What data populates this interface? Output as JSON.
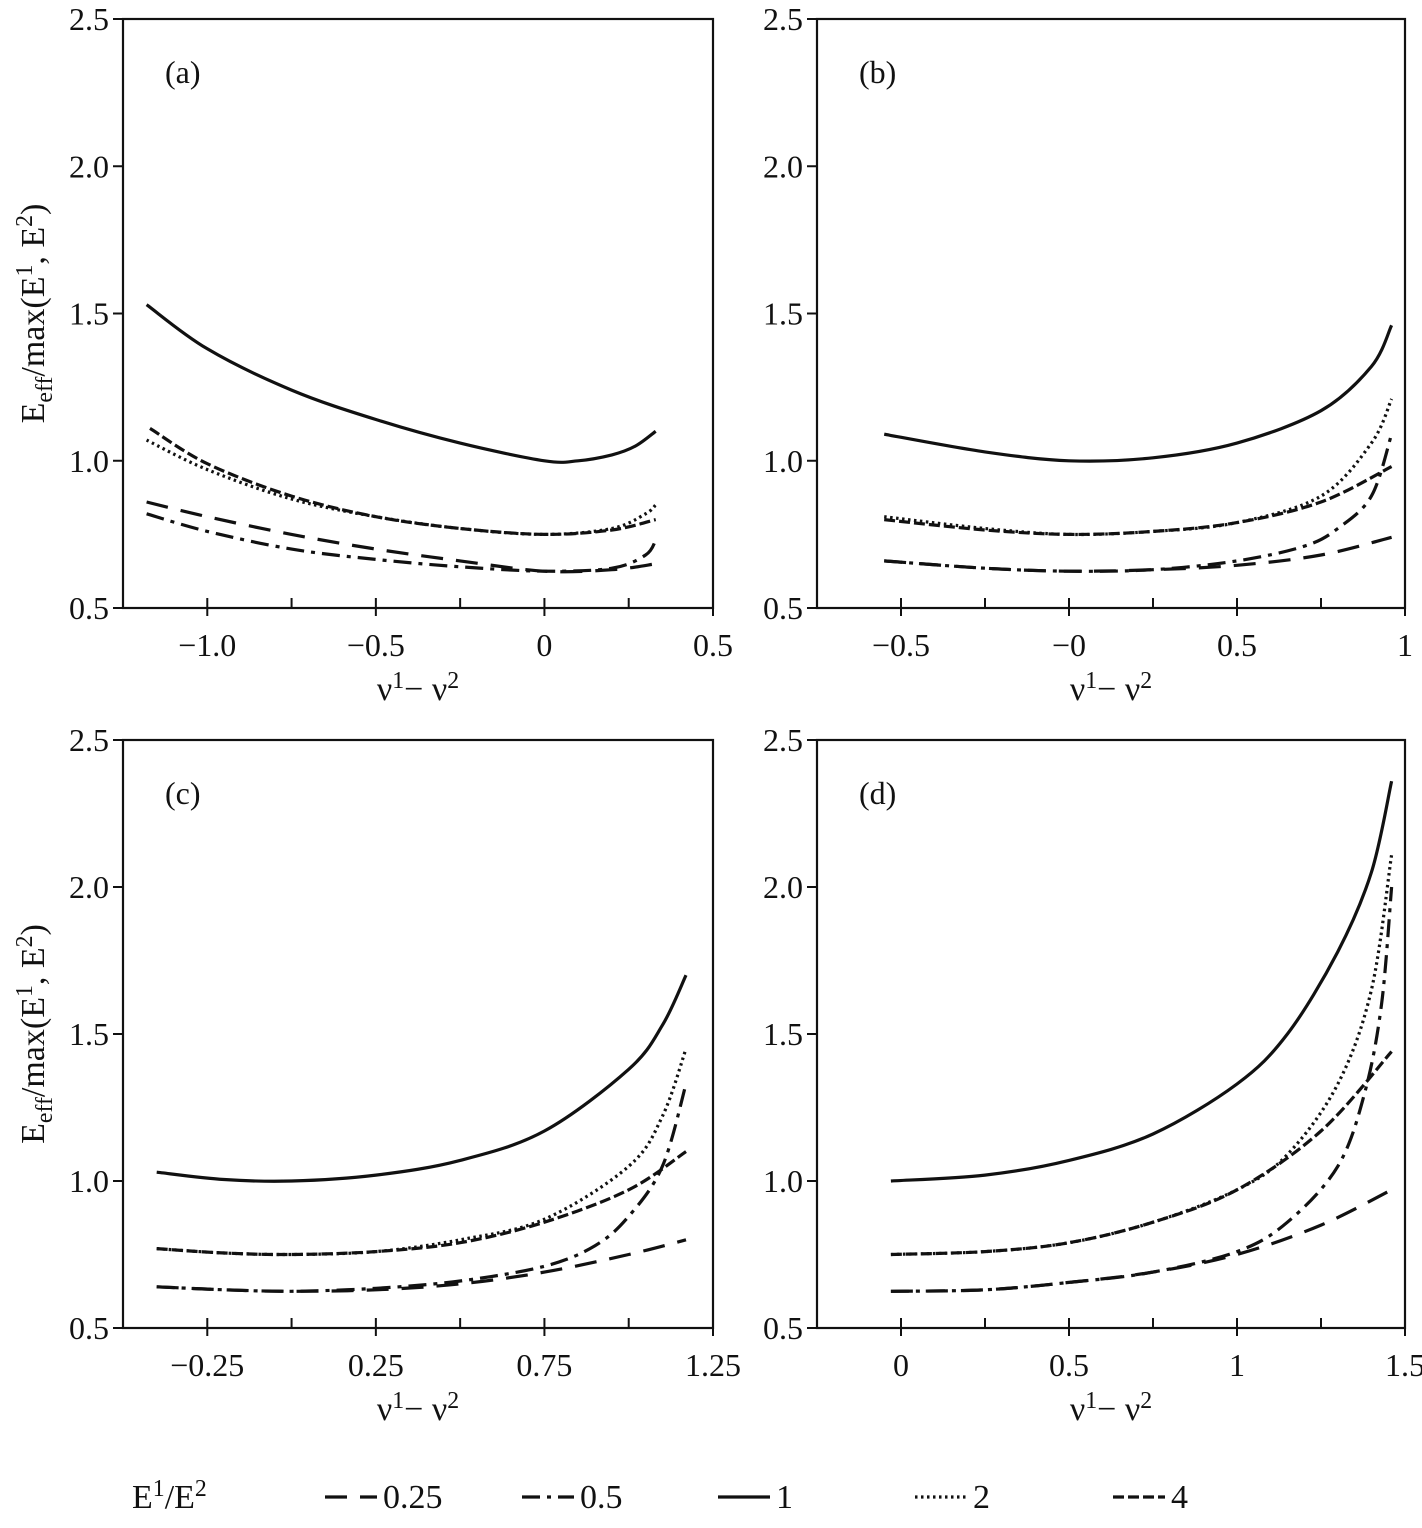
{
  "chart_data": [
    {
      "type": "line",
      "panel_label": "(a)",
      "xlabel": "ν¹− ν²",
      "ylabel": "E_eff/max(E¹, E²)",
      "xlim": [
        -1.25,
        0.5
      ],
      "ylim": [
        0.5,
        2.5
      ],
      "xticks": [
        -1.0,
        -0.5,
        0,
        0.5
      ],
      "xtick_labels": [
        "−1.0",
        "−0.5",
        "0",
        "0.5"
      ],
      "xminor": [
        -1.25,
        -1.0,
        -0.75,
        -0.5,
        -0.25,
        0,
        0.25,
        0.5
      ],
      "yticks": [
        0.5,
        1.0,
        1.5,
        2.0,
        2.5
      ],
      "ytick_labels": [
        "0.5",
        "1.0",
        "1.5",
        "2.0",
        "2.5"
      ],
      "grid": false,
      "series": [
        {
          "ratio": "0.25",
          "x": [
            -1.18,
            -1.0,
            -0.75,
            -0.5,
            -0.25,
            0,
            0.2,
            0.33
          ],
          "y": [
            0.86,
            0.81,
            0.75,
            0.7,
            0.66,
            0.625,
            0.63,
            0.65
          ]
        },
        {
          "ratio": "0.5",
          "x": [
            -1.18,
            -1.0,
            -0.75,
            -0.5,
            -0.25,
            0,
            0.2,
            0.3,
            0.33
          ],
          "y": [
            0.82,
            0.76,
            0.7,
            0.665,
            0.64,
            0.625,
            0.635,
            0.68,
            0.73
          ]
        },
        {
          "ratio": "1",
          "x": [
            -1.18,
            -1.0,
            -0.75,
            -0.5,
            -0.25,
            0,
            0.1,
            0.2,
            0.27,
            0.33
          ],
          "y": [
            1.53,
            1.38,
            1.24,
            1.14,
            1.06,
            1.0,
            1.0,
            1.02,
            1.05,
            1.1
          ]
        },
        {
          "ratio": "2",
          "x": [
            -1.18,
            -1.0,
            -0.75,
            -0.5,
            -0.25,
            0,
            0.2,
            0.3,
            0.33
          ],
          "y": [
            1.07,
            0.97,
            0.87,
            0.81,
            0.77,
            0.75,
            0.77,
            0.82,
            0.85
          ]
        },
        {
          "ratio": "4",
          "x": [
            -1.17,
            -1.0,
            -0.75,
            -0.5,
            -0.25,
            0,
            0.2,
            0.33
          ],
          "y": [
            1.11,
            0.99,
            0.88,
            0.81,
            0.77,
            0.75,
            0.765,
            0.8
          ]
        }
      ]
    },
    {
      "type": "line",
      "panel_label": "(b)",
      "xlabel": "ν¹− ν²",
      "ylabel": "",
      "xlim": [
        -0.75,
        1.0
      ],
      "ylim": [
        0.5,
        2.5
      ],
      "xticks": [
        -0.5,
        0,
        0.5,
        1.0
      ],
      "xtick_labels": [
        "−0.5",
        "−0",
        "0.5",
        "1"
      ],
      "xminor": [
        -0.75,
        -0.5,
        -0.25,
        0,
        0.25,
        0.5,
        0.75,
        1.0
      ],
      "yticks": [
        0.5,
        1.0,
        1.5,
        2.0,
        2.5
      ],
      "ytick_labels": [
        "0.5",
        "1.0",
        "1.5",
        "2.0",
        "2.5"
      ],
      "grid": false,
      "series": [
        {
          "ratio": "0.25",
          "x": [
            -0.55,
            -0.25,
            0,
            0.25,
            0.5,
            0.75,
            0.96
          ],
          "y": [
            0.66,
            0.635,
            0.625,
            0.63,
            0.645,
            0.68,
            0.74
          ]
        },
        {
          "ratio": "0.5",
          "x": [
            -0.55,
            -0.25,
            0,
            0.25,
            0.5,
            0.7,
            0.8,
            0.9,
            0.96
          ],
          "y": [
            0.66,
            0.635,
            0.625,
            0.63,
            0.66,
            0.71,
            0.77,
            0.88,
            1.09
          ]
        },
        {
          "ratio": "1",
          "x": [
            -0.55,
            -0.25,
            0,
            0.25,
            0.5,
            0.75,
            0.9,
            0.96
          ],
          "y": [
            1.09,
            1.03,
            1.0,
            1.01,
            1.06,
            1.17,
            1.32,
            1.46
          ]
        },
        {
          "ratio": "2",
          "x": [
            -0.55,
            -0.25,
            0,
            0.25,
            0.5,
            0.75,
            0.9,
            0.96
          ],
          "y": [
            0.81,
            0.77,
            0.75,
            0.76,
            0.79,
            0.88,
            1.06,
            1.21
          ]
        },
        {
          "ratio": "4",
          "x": [
            -0.55,
            -0.25,
            0,
            0.25,
            0.5,
            0.75,
            0.96
          ],
          "y": [
            0.8,
            0.765,
            0.75,
            0.76,
            0.79,
            0.86,
            0.98
          ]
        }
      ]
    },
    {
      "type": "line",
      "panel_label": "(c)",
      "xlabel": "ν¹− ν²",
      "ylabel": "E_eff/max(E¹, E²)",
      "xlim": [
        -0.5,
        1.25
      ],
      "ylim": [
        0.5,
        2.5
      ],
      "xticks": [
        -0.25,
        0.25,
        0.75,
        1.25
      ],
      "xtick_labels": [
        "−0.25",
        "0.25",
        "0.75",
        "1.25"
      ],
      "xminor": [
        -0.5,
        -0.25,
        0,
        0.25,
        0.5,
        0.75,
        1.0,
        1.25
      ],
      "yticks": [
        0.5,
        1.0,
        1.5,
        2.0,
        2.5
      ],
      "ytick_labels": [
        "0.5",
        "1.0",
        "1.5",
        "2.0",
        "2.5"
      ],
      "grid": false,
      "series": [
        {
          "ratio": "0.25",
          "x": [
            -0.4,
            -0.2,
            0,
            0.25,
            0.5,
            0.75,
            1.0,
            1.17
          ],
          "y": [
            0.64,
            0.63,
            0.625,
            0.63,
            0.65,
            0.69,
            0.75,
            0.8
          ]
        },
        {
          "ratio": "0.5",
          "x": [
            -0.4,
            -0.2,
            0,
            0.25,
            0.5,
            0.75,
            0.9,
            1.0,
            1.1,
            1.17
          ],
          "y": [
            0.64,
            0.63,
            0.625,
            0.635,
            0.66,
            0.71,
            0.78,
            0.88,
            1.05,
            1.33
          ]
        },
        {
          "ratio": "1",
          "x": [
            -0.4,
            -0.2,
            0,
            0.25,
            0.5,
            0.75,
            1.0,
            1.1,
            1.17
          ],
          "y": [
            1.03,
            1.005,
            1.0,
            1.02,
            1.07,
            1.17,
            1.38,
            1.53,
            1.7
          ]
        },
        {
          "ratio": "2",
          "x": [
            -0.4,
            -0.2,
            0,
            0.25,
            0.5,
            0.75,
            1.0,
            1.1,
            1.17
          ],
          "y": [
            0.77,
            0.755,
            0.75,
            0.76,
            0.8,
            0.87,
            1.05,
            1.22,
            1.45
          ]
        },
        {
          "ratio": "4",
          "x": [
            -0.4,
            -0.2,
            0,
            0.25,
            0.5,
            0.75,
            1.0,
            1.17
          ],
          "y": [
            0.77,
            0.755,
            0.75,
            0.76,
            0.79,
            0.86,
            0.97,
            1.1
          ]
        }
      ]
    },
    {
      "type": "line",
      "panel_label": "(d)",
      "xlabel": "ν¹− ν²",
      "ylabel": "",
      "xlim": [
        -0.25,
        1.5
      ],
      "ylim": [
        0.5,
        2.5
      ],
      "xticks": [
        0,
        0.5,
        1.0,
        1.5
      ],
      "xtick_labels": [
        "0",
        "0.5",
        "1",
        "1.5"
      ],
      "xminor": [
        -0.25,
        0,
        0.25,
        0.5,
        0.75,
        1.0,
        1.25,
        1.5
      ],
      "yticks": [
        0.5,
        1.0,
        1.5,
        2.0,
        2.5
      ],
      "ytick_labels": [
        "0.5",
        "1.0",
        "1.5",
        "2.0",
        "2.5"
      ],
      "grid": false,
      "series": [
        {
          "ratio": "0.25",
          "x": [
            -0.03,
            0.25,
            0.5,
            0.75,
            1.0,
            1.25,
            1.46
          ],
          "y": [
            0.625,
            0.63,
            0.655,
            0.69,
            0.75,
            0.85,
            0.97
          ]
        },
        {
          "ratio": "0.5",
          "x": [
            -0.03,
            0.25,
            0.5,
            0.75,
            1.0,
            1.15,
            1.3,
            1.38,
            1.43,
            1.46
          ],
          "y": [
            0.625,
            0.63,
            0.655,
            0.69,
            0.76,
            0.86,
            1.05,
            1.3,
            1.6,
            2.0
          ]
        },
        {
          "ratio": "1",
          "x": [
            -0.03,
            0.25,
            0.5,
            0.75,
            1.0,
            1.15,
            1.3,
            1.4,
            1.46
          ],
          "y": [
            1.0,
            1.02,
            1.07,
            1.16,
            1.33,
            1.5,
            1.78,
            2.05,
            2.36
          ]
        },
        {
          "ratio": "2",
          "x": [
            -0.03,
            0.25,
            0.5,
            0.75,
            1.0,
            1.15,
            1.3,
            1.4,
            1.46
          ],
          "y": [
            0.75,
            0.76,
            0.79,
            0.86,
            0.97,
            1.09,
            1.33,
            1.65,
            2.11
          ]
        },
        {
          "ratio": "4",
          "x": [
            -0.03,
            0.25,
            0.5,
            0.75,
            1.0,
            1.25,
            1.46
          ],
          "y": [
            0.75,
            0.76,
            0.79,
            0.86,
            0.97,
            1.17,
            1.44
          ]
        }
      ]
    }
  ],
  "legend": {
    "title": "E¹/E²",
    "entries": [
      {
        "ratio": "0.25",
        "label": "0.25"
      },
      {
        "ratio": "0.5",
        "label": "0.5"
      },
      {
        "ratio": "1",
        "label": "1"
      },
      {
        "ratio": "2",
        "label": "2"
      },
      {
        "ratio": "4",
        "label": "4"
      }
    ]
  },
  "styles": {
    "0.25": {
      "color": "#111111",
      "dash": "22 13"
    },
    "0.5": {
      "color": "#111111",
      "dash": "18 7 4 7"
    },
    "1": {
      "color": "#111111",
      "dash": ""
    },
    "2": {
      "color": "#111111",
      "dash": "2.5 3.5"
    },
    "4": {
      "color": "#111111",
      "dash": "11 4"
    }
  }
}
